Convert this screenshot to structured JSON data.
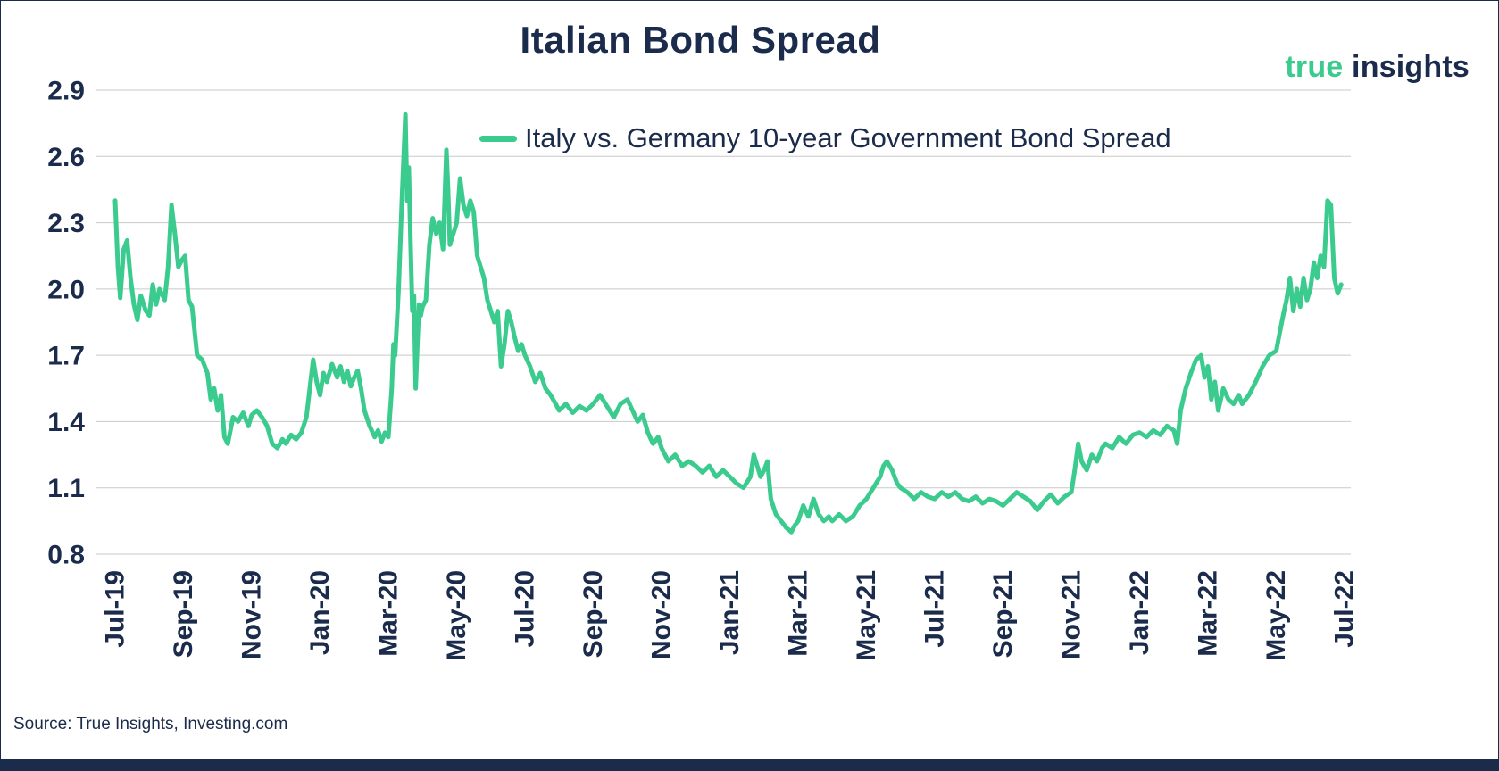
{
  "header": {
    "title": "Italian Bond Spread",
    "logo": {
      "part1": "true",
      "part2": " insights"
    }
  },
  "footer": {
    "source": "Source: True Insights, Investing.com"
  },
  "colors": {
    "accent_green": "#3ccb8e",
    "navy": "#1b2b4b",
    "gridline": "#c9c9c9"
  },
  "chart_data": {
    "type": "line",
    "title": "Italian Bond Spread",
    "xlabel": "",
    "ylabel": "",
    "x_unit": "months since Jul-2019",
    "xlim": [
      0,
      36
    ],
    "ylim": [
      0.8,
      2.9
    ],
    "grid": "horizontal",
    "legend_position": "top-center-inside",
    "y_ticks": [
      0.8,
      1.1,
      1.4,
      1.7,
      2.0,
      2.3,
      2.6,
      2.9
    ],
    "x_ticks": [
      {
        "t": 0,
        "label": "Jul-19"
      },
      {
        "t": 2,
        "label": "Sep-19"
      },
      {
        "t": 4,
        "label": "Nov-19"
      },
      {
        "t": 6,
        "label": "Jan-20"
      },
      {
        "t": 8,
        "label": "Mar-20"
      },
      {
        "t": 10,
        "label": "May-20"
      },
      {
        "t": 12,
        "label": "Jul-20"
      },
      {
        "t": 14,
        "label": "Sep-20"
      },
      {
        "t": 16,
        "label": "Nov-20"
      },
      {
        "t": 18,
        "label": "Jan-21"
      },
      {
        "t": 20,
        "label": "Mar-21"
      },
      {
        "t": 22,
        "label": "May-21"
      },
      {
        "t": 24,
        "label": "Jul-21"
      },
      {
        "t": 26,
        "label": "Sep-21"
      },
      {
        "t": 28,
        "label": "Nov-21"
      },
      {
        "t": 30,
        "label": "Jan-22"
      },
      {
        "t": 32,
        "label": "Mar-22"
      },
      {
        "t": 34,
        "label": "May-22"
      },
      {
        "t": 36,
        "label": "Jul-22"
      }
    ],
    "series": [
      {
        "name": "Italy vs. Germany 10-year Government Bond Spread",
        "color": "#3ccb8e",
        "points": [
          [
            0,
            2.4
          ],
          [
            0.08,
            2.1
          ],
          [
            0.15,
            1.96
          ],
          [
            0.25,
            2.18
          ],
          [
            0.35,
            2.22
          ],
          [
            0.45,
            2.05
          ],
          [
            0.55,
            1.93
          ],
          [
            0.65,
            1.86
          ],
          [
            0.75,
            1.97
          ],
          [
            0.9,
            1.9
          ],
          [
            1.0,
            1.88
          ],
          [
            1.1,
            2.02
          ],
          [
            1.2,
            1.93
          ],
          [
            1.3,
            2.0
          ],
          [
            1.45,
            1.95
          ],
          [
            1.55,
            2.1
          ],
          [
            1.65,
            2.38
          ],
          [
            1.75,
            2.25
          ],
          [
            1.85,
            2.1
          ],
          [
            1.95,
            2.13
          ],
          [
            2.05,
            2.15
          ],
          [
            2.15,
            1.95
          ],
          [
            2.25,
            1.92
          ],
          [
            2.4,
            1.7
          ],
          [
            2.55,
            1.68
          ],
          [
            2.7,
            1.62
          ],
          [
            2.8,
            1.5
          ],
          [
            2.9,
            1.55
          ],
          [
            3.0,
            1.45
          ],
          [
            3.1,
            1.52
          ],
          [
            3.2,
            1.33
          ],
          [
            3.3,
            1.3
          ],
          [
            3.45,
            1.42
          ],
          [
            3.6,
            1.4
          ],
          [
            3.75,
            1.44
          ],
          [
            3.9,
            1.38
          ],
          [
            4.0,
            1.43
          ],
          [
            4.15,
            1.45
          ],
          [
            4.3,
            1.42
          ],
          [
            4.45,
            1.38
          ],
          [
            4.6,
            1.3
          ],
          [
            4.75,
            1.28
          ],
          [
            4.9,
            1.32
          ],
          [
            5.0,
            1.3
          ],
          [
            5.15,
            1.34
          ],
          [
            5.3,
            1.32
          ],
          [
            5.45,
            1.35
          ],
          [
            5.6,
            1.42
          ],
          [
            5.7,
            1.55
          ],
          [
            5.8,
            1.68
          ],
          [
            5.9,
            1.58
          ],
          [
            6.0,
            1.52
          ],
          [
            6.1,
            1.62
          ],
          [
            6.2,
            1.58
          ],
          [
            6.35,
            1.66
          ],
          [
            6.5,
            1.6
          ],
          [
            6.6,
            1.65
          ],
          [
            6.7,
            1.58
          ],
          [
            6.8,
            1.63
          ],
          [
            6.9,
            1.56
          ],
          [
            7.0,
            1.6
          ],
          [
            7.1,
            1.63
          ],
          [
            7.2,
            1.55
          ],
          [
            7.3,
            1.45
          ],
          [
            7.45,
            1.38
          ],
          [
            7.6,
            1.33
          ],
          [
            7.7,
            1.36
          ],
          [
            7.8,
            1.31
          ],
          [
            7.9,
            1.35
          ],
          [
            8.0,
            1.33
          ],
          [
            8.1,
            1.55
          ],
          [
            8.15,
            1.75
          ],
          [
            8.2,
            1.7
          ],
          [
            8.3,
            2.0
          ],
          [
            8.4,
            2.42
          ],
          [
            8.5,
            2.79
          ],
          [
            8.55,
            2.4
          ],
          [
            8.6,
            2.55
          ],
          [
            8.65,
            2.2
          ],
          [
            8.7,
            1.9
          ],
          [
            8.75,
            1.97
          ],
          [
            8.8,
            1.55
          ],
          [
            8.85,
            1.75
          ],
          [
            8.9,
            1.93
          ],
          [
            8.95,
            1.88
          ],
          [
            9.0,
            1.92
          ],
          [
            9.1,
            1.95
          ],
          [
            9.2,
            2.2
          ],
          [
            9.3,
            2.32
          ],
          [
            9.4,
            2.25
          ],
          [
            9.5,
            2.3
          ],
          [
            9.6,
            2.18
          ],
          [
            9.7,
            2.63
          ],
          [
            9.75,
            2.45
          ],
          [
            9.8,
            2.2
          ],
          [
            9.9,
            2.25
          ],
          [
            10.0,
            2.3
          ],
          [
            10.1,
            2.5
          ],
          [
            10.2,
            2.38
          ],
          [
            10.3,
            2.33
          ],
          [
            10.4,
            2.4
          ],
          [
            10.5,
            2.35
          ],
          [
            10.6,
            2.15
          ],
          [
            10.7,
            2.1
          ],
          [
            10.8,
            2.05
          ],
          [
            10.9,
            1.95
          ],
          [
            11.0,
            1.9
          ],
          [
            11.1,
            1.85
          ],
          [
            11.2,
            1.9
          ],
          [
            11.3,
            1.65
          ],
          [
            11.4,
            1.75
          ],
          [
            11.5,
            1.9
          ],
          [
            11.6,
            1.85
          ],
          [
            11.7,
            1.78
          ],
          [
            11.8,
            1.72
          ],
          [
            11.9,
            1.75
          ],
          [
            12.0,
            1.7
          ],
          [
            12.15,
            1.65
          ],
          [
            12.3,
            1.58
          ],
          [
            12.45,
            1.62
          ],
          [
            12.6,
            1.55
          ],
          [
            12.75,
            1.52
          ],
          [
            12.9,
            1.48
          ],
          [
            13.0,
            1.45
          ],
          [
            13.2,
            1.48
          ],
          [
            13.4,
            1.44
          ],
          [
            13.6,
            1.47
          ],
          [
            13.8,
            1.45
          ],
          [
            14.0,
            1.48
          ],
          [
            14.2,
            1.52
          ],
          [
            14.4,
            1.47
          ],
          [
            14.6,
            1.42
          ],
          [
            14.8,
            1.48
          ],
          [
            15.0,
            1.5
          ],
          [
            15.15,
            1.45
          ],
          [
            15.3,
            1.4
          ],
          [
            15.45,
            1.43
          ],
          [
            15.6,
            1.35
          ],
          [
            15.75,
            1.3
          ],
          [
            15.9,
            1.33
          ],
          [
            16.0,
            1.28
          ],
          [
            16.2,
            1.22
          ],
          [
            16.4,
            1.25
          ],
          [
            16.6,
            1.2
          ],
          [
            16.8,
            1.22
          ],
          [
            17.0,
            1.2
          ],
          [
            17.2,
            1.17
          ],
          [
            17.4,
            1.2
          ],
          [
            17.6,
            1.15
          ],
          [
            17.8,
            1.18
          ],
          [
            18.0,
            1.15
          ],
          [
            18.2,
            1.12
          ],
          [
            18.4,
            1.1
          ],
          [
            18.6,
            1.15
          ],
          [
            18.7,
            1.25
          ],
          [
            18.8,
            1.2
          ],
          [
            18.9,
            1.15
          ],
          [
            19.0,
            1.18
          ],
          [
            19.1,
            1.22
          ],
          [
            19.2,
            1.05
          ],
          [
            19.35,
            0.98
          ],
          [
            19.5,
            0.95
          ],
          [
            19.65,
            0.92
          ],
          [
            19.8,
            0.9
          ],
          [
            19.9,
            0.93
          ],
          [
            20.0,
            0.95
          ],
          [
            20.15,
            1.02
          ],
          [
            20.3,
            0.97
          ],
          [
            20.45,
            1.05
          ],
          [
            20.6,
            0.98
          ],
          [
            20.75,
            0.95
          ],
          [
            20.9,
            0.97
          ],
          [
            21.0,
            0.95
          ],
          [
            21.2,
            0.98
          ],
          [
            21.4,
            0.95
          ],
          [
            21.6,
            0.97
          ],
          [
            21.8,
            1.02
          ],
          [
            22.0,
            1.05
          ],
          [
            22.2,
            1.1
          ],
          [
            22.4,
            1.15
          ],
          [
            22.5,
            1.2
          ],
          [
            22.6,
            1.22
          ],
          [
            22.75,
            1.18
          ],
          [
            22.9,
            1.12
          ],
          [
            23.0,
            1.1
          ],
          [
            23.2,
            1.08
          ],
          [
            23.4,
            1.05
          ],
          [
            23.6,
            1.08
          ],
          [
            23.8,
            1.06
          ],
          [
            24.0,
            1.05
          ],
          [
            24.2,
            1.08
          ],
          [
            24.4,
            1.06
          ],
          [
            24.6,
            1.08
          ],
          [
            24.8,
            1.05
          ],
          [
            25.0,
            1.04
          ],
          [
            25.2,
            1.06
          ],
          [
            25.4,
            1.03
          ],
          [
            25.6,
            1.05
          ],
          [
            25.8,
            1.04
          ],
          [
            26.0,
            1.02
          ],
          [
            26.2,
            1.05
          ],
          [
            26.4,
            1.08
          ],
          [
            26.6,
            1.06
          ],
          [
            26.8,
            1.04
          ],
          [
            27.0,
            1.0
          ],
          [
            27.2,
            1.04
          ],
          [
            27.4,
            1.07
          ],
          [
            27.6,
            1.03
          ],
          [
            27.8,
            1.06
          ],
          [
            28.0,
            1.08
          ],
          [
            28.1,
            1.18
          ],
          [
            28.2,
            1.3
          ],
          [
            28.3,
            1.22
          ],
          [
            28.45,
            1.18
          ],
          [
            28.6,
            1.25
          ],
          [
            28.75,
            1.22
          ],
          [
            28.9,
            1.28
          ],
          [
            29.0,
            1.3
          ],
          [
            29.2,
            1.28
          ],
          [
            29.4,
            1.33
          ],
          [
            29.6,
            1.3
          ],
          [
            29.8,
            1.34
          ],
          [
            30.0,
            1.35
          ],
          [
            30.2,
            1.33
          ],
          [
            30.4,
            1.36
          ],
          [
            30.6,
            1.34
          ],
          [
            30.8,
            1.38
          ],
          [
            31.0,
            1.36
          ],
          [
            31.1,
            1.3
          ],
          [
            31.2,
            1.45
          ],
          [
            31.35,
            1.55
          ],
          [
            31.5,
            1.62
          ],
          [
            31.65,
            1.68
          ],
          [
            31.8,
            1.7
          ],
          [
            31.9,
            1.6
          ],
          [
            32.0,
            1.65
          ],
          [
            32.1,
            1.5
          ],
          [
            32.2,
            1.58
          ],
          [
            32.3,
            1.45
          ],
          [
            32.45,
            1.55
          ],
          [
            32.6,
            1.5
          ],
          [
            32.75,
            1.48
          ],
          [
            32.9,
            1.52
          ],
          [
            33.0,
            1.48
          ],
          [
            33.2,
            1.52
          ],
          [
            33.4,
            1.58
          ],
          [
            33.6,
            1.65
          ],
          [
            33.8,
            1.7
          ],
          [
            34.0,
            1.72
          ],
          [
            34.1,
            1.8
          ],
          [
            34.2,
            1.88
          ],
          [
            34.3,
            1.95
          ],
          [
            34.4,
            2.05
          ],
          [
            34.5,
            1.9
          ],
          [
            34.6,
            2.0
          ],
          [
            34.7,
            1.92
          ],
          [
            34.8,
            2.05
          ],
          [
            34.9,
            1.95
          ],
          [
            35.0,
            2.0
          ],
          [
            35.1,
            2.12
          ],
          [
            35.2,
            2.05
          ],
          [
            35.3,
            2.15
          ],
          [
            35.4,
            2.1
          ],
          [
            35.5,
            2.4
          ],
          [
            35.6,
            2.38
          ],
          [
            35.7,
            2.05
          ],
          [
            35.8,
            1.98
          ],
          [
            35.9,
            2.02
          ]
        ]
      }
    ]
  }
}
